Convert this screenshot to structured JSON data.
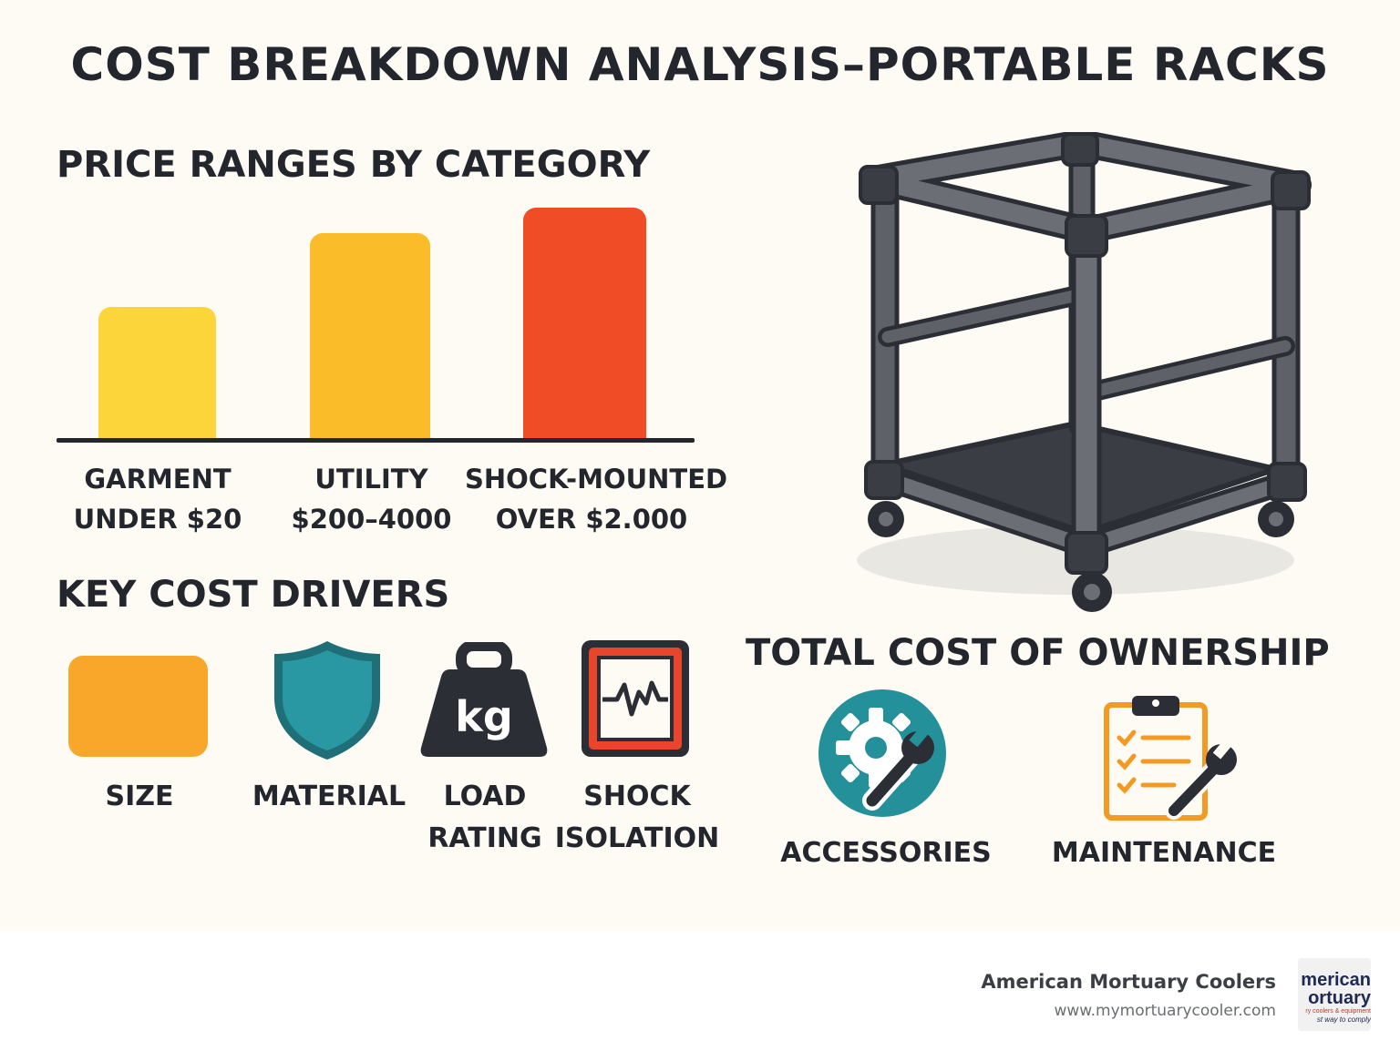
{
  "title": "COST BREAKDOWN ANALYSIS–PORTABLE RACKS",
  "price_section": {
    "heading": "PRICE RANGES BY CATEGORY"
  },
  "chart_data": {
    "type": "bar",
    "title": "PRICE RANGES BY CATEGORY",
    "categories": [
      {
        "line1": "GARMENT",
        "line2": "UNDER $20",
        "relative_height": 0.57,
        "color": "#fbd53a"
      },
      {
        "line1": "UTILITY",
        "line2": "$200–4000",
        "relative_height": 0.89,
        "color": "#fbbc2a"
      },
      {
        "line1": "SHOCK-MOUNTED",
        "line2": "OVER $2.000",
        "relative_height": 1.0,
        "color": "#f04c26"
      }
    ]
  },
  "drivers": {
    "heading": "KEY COST DRIVERS",
    "items": [
      {
        "line1": "SIZE",
        "line2": "",
        "icon": "orange-rectangle-icon",
        "color": "#f9a72a"
      },
      {
        "line1": "MATERIAL",
        "line2": "",
        "icon": "shield-icon",
        "color": "#25909b"
      },
      {
        "line1": "LOAD",
        "line2": "RATING",
        "icon": "kg-weight-icon",
        "icon_text": "kg",
        "color": "#2b2e34"
      },
      {
        "line1": "SHOCK",
        "line2": "ISOLATION",
        "icon": "shock-monitor-icon",
        "color": "#e8452a"
      }
    ]
  },
  "ownership": {
    "heading": "TOTAL COST OF OWNERSHIP",
    "items": [
      {
        "label": "ACCESSORIES",
        "icon": "gear-wrench-icon",
        "color": "#24909a"
      },
      {
        "label": "MAINTENANCE",
        "icon": "clipboard-wrench-icon",
        "color": "#f39a24"
      }
    ]
  },
  "rack_illustration": {
    "icon": "portable-rack-icon",
    "color": "#5e6168"
  },
  "footer": {
    "brand": "American Mortuary Coolers",
    "url": "www.mymortuarycooler.com",
    "logo_line1": "merican",
    "logo_line2": "ortuary",
    "logo_line3": "ry coolers & equipment",
    "logo_line4": "st way to comply"
  }
}
